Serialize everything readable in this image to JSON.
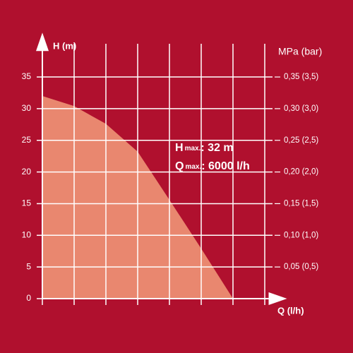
{
  "chart_data": {
    "type": "area",
    "y_label": "H (m)",
    "y2_label": "MPa (bar)",
    "x_label": "Q (l/h)",
    "x": [
      0,
      1000,
      2000,
      3000,
      4000,
      5000,
      6000
    ],
    "values": [
      32,
      30.4,
      27.6,
      23.2,
      15.6,
      7.9,
      0
    ],
    "color": "#e9876f",
    "xlim": [
      0,
      7700
    ],
    "xticks": [
      0,
      1000,
      2000,
      3000,
      4000,
      5000,
      6000,
      7000
    ],
    "ylim": [
      0,
      42
    ],
    "yticks": [
      0,
      5,
      10,
      15,
      20,
      25,
      30,
      35
    ],
    "y2lim": [
      0,
      0.42
    ],
    "y2ticks": [
      {
        "value": 0.05,
        "label": "0,05 (0,5)"
      },
      {
        "value": 0.1,
        "label": "0,10 (1,0)"
      },
      {
        "value": 0.15,
        "label": "0,15 (1,5)"
      },
      {
        "value": 0.2,
        "label": "0,20 (2,0)"
      },
      {
        "value": 0.25,
        "label": "0,25 (2,5)"
      },
      {
        "value": 0.3,
        "label": "0,30 (3,0)"
      },
      {
        "value": 0.35,
        "label": "0,35 (3,5)"
      }
    ],
    "grid": true,
    "annotations": [
      {
        "symbol": "H",
        "subscript": "max.",
        "text": ": 32 m"
      },
      {
        "symbol": "Q",
        "subscript": "max.",
        "text": ": 6000 l/h"
      }
    ]
  }
}
